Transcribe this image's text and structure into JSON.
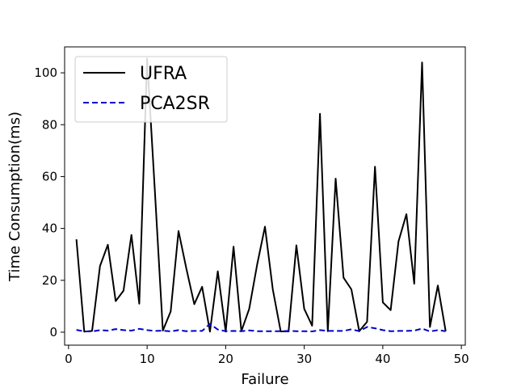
{
  "chart_data": {
    "type": "line",
    "title": "",
    "xlabel": "Failure",
    "ylabel": "Time Consumption(ms)",
    "xlim": [
      -0.5,
      50.5
    ],
    "ylim": [
      -5,
      110
    ],
    "x_ticks": [
      0,
      10,
      20,
      30,
      40,
      50
    ],
    "y_ticks": [
      0,
      20,
      40,
      60,
      80,
      100
    ],
    "grid": false,
    "legend_position": "top-left",
    "x": [
      1,
      2,
      3,
      4,
      5,
      6,
      7,
      8,
      9,
      10,
      11,
      12,
      13,
      14,
      15,
      16,
      17,
      18,
      19,
      20,
      21,
      22,
      23,
      24,
      25,
      26,
      27,
      28,
      29,
      30,
      31,
      32,
      33,
      34,
      35,
      36,
      37,
      38,
      39,
      40,
      41,
      42,
      43,
      44,
      45,
      46,
      47,
      48
    ],
    "series": [
      {
        "name": "UFRA",
        "color": "#000000",
        "style": "solid",
        "values": [
          35.8,
          0.2,
          0.5,
          25.5,
          33.7,
          12.0,
          16.0,
          37.5,
          11.0,
          105.5,
          54.0,
          0.6,
          8.0,
          39.0,
          24.5,
          10.8,
          17.5,
          0.2,
          23.5,
          0.2,
          33.0,
          0.4,
          9.0,
          26.0,
          40.7,
          16.5,
          0.3,
          0.3,
          33.5,
          9.0,
          2.5,
          84.2,
          0.4,
          59.2,
          21.0,
          16.5,
          0.4,
          4.0,
          63.8,
          11.5,
          8.5,
          35.0,
          45.5,
          18.7,
          104.0,
          2.0,
          18.0,
          0.4
        ]
      },
      {
        "name": "PCA2SR",
        "color": "#0000cc",
        "style": "dashed",
        "values": [
          0.9,
          0.3,
          0.3,
          0.8,
          0.6,
          1.2,
          0.8,
          0.6,
          1.3,
          0.8,
          0.5,
          0.6,
          0.3,
          0.8,
          0.4,
          0.5,
          0.5,
          3.2,
          1.0,
          0.4,
          0.5,
          0.4,
          0.7,
          0.4,
          0.4,
          0.4,
          0.4,
          0.5,
          0.4,
          0.4,
          0.3,
          0.8,
          0.5,
          0.5,
          0.5,
          1.1,
          0.4,
          2.0,
          1.5,
          0.8,
          0.4,
          0.5,
          0.5,
          0.6,
          1.4,
          0.3,
          0.8,
          0.4
        ]
      }
    ]
  }
}
